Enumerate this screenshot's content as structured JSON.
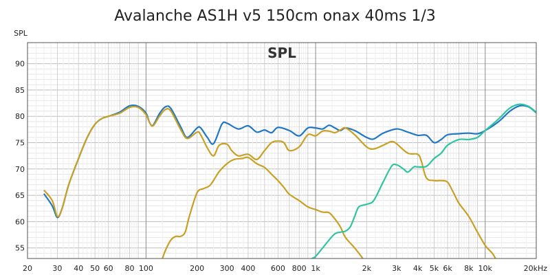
{
  "chart_data": {
    "type": "line",
    "title": "Avalanche AS1H v5 150cm onax 40ms 1/3",
    "inner_label": "SPL",
    "ylabel": "SPL",
    "xscale": "log",
    "xlim": [
      20,
      20000
    ],
    "ylim": [
      53,
      94
    ],
    "grid": true,
    "xticks": [
      {
        "v": 20,
        "label": "20"
      },
      {
        "v": 30,
        "label": "30"
      },
      {
        "v": 40,
        "label": "40"
      },
      {
        "v": 50,
        "label": "50"
      },
      {
        "v": 60,
        "label": "60"
      },
      {
        "v": 80,
        "label": "80"
      },
      {
        "v": 100,
        "label": "100"
      },
      {
        "v": 200,
        "label": "200"
      },
      {
        "v": 300,
        "label": "300"
      },
      {
        "v": 400,
        "label": "400"
      },
      {
        "v": 600,
        "label": "600"
      },
      {
        "v": 800,
        "label": "800"
      },
      {
        "v": 1000,
        "label": "1k"
      },
      {
        "v": 2000,
        "label": "2k"
      },
      {
        "v": 3000,
        "label": "3k"
      },
      {
        "v": 4000,
        "label": "4k"
      },
      {
        "v": 5000,
        "label": "5k"
      },
      {
        "v": 6000,
        "label": "6k"
      },
      {
        "v": 8000,
        "label": "8k"
      },
      {
        "v": 10000,
        "label": "10k"
      },
      {
        "v": 20000,
        "label": "20kHz"
      }
    ],
    "yticks": [
      55,
      60,
      65,
      70,
      75,
      80,
      85,
      90
    ],
    "series": [
      {
        "color": "#1f77c4",
        "points": [
          [
            25,
            65.3
          ],
          [
            28,
            63
          ],
          [
            30,
            60.8
          ],
          [
            32,
            62.5
          ],
          [
            35,
            67
          ],
          [
            40,
            72
          ],
          [
            45,
            76
          ],
          [
            50,
            78.5
          ],
          [
            55,
            79.6
          ],
          [
            60,
            80
          ],
          [
            70,
            80.8
          ],
          [
            80,
            82
          ],
          [
            90,
            81.9
          ],
          [
            100,
            80.6
          ],
          [
            105,
            78.8
          ],
          [
            110,
            78.3
          ],
          [
            120,
            80.5
          ],
          [
            130,
            81.8
          ],
          [
            140,
            81.5
          ],
          [
            160,
            78
          ],
          [
            175,
            76
          ],
          [
            200,
            77.8
          ],
          [
            210,
            77.8
          ],
          [
            230,
            76
          ],
          [
            250,
            74.8
          ],
          [
            280,
            78.5
          ],
          [
            300,
            78.7
          ],
          [
            350,
            77.6
          ],
          [
            400,
            78.2
          ],
          [
            450,
            77
          ],
          [
            500,
            77.4
          ],
          [
            550,
            76.9
          ],
          [
            600,
            77.9
          ],
          [
            700,
            77.3
          ],
          [
            800,
            76.3
          ],
          [
            900,
            77.8
          ],
          [
            1000,
            77.8
          ],
          [
            1100,
            77.6
          ],
          [
            1200,
            78.3
          ],
          [
            1300,
            77.8
          ],
          [
            1400,
            77.3
          ],
          [
            1500,
            77.8
          ],
          [
            1700,
            77.3
          ],
          [
            2000,
            76
          ],
          [
            2200,
            75.7
          ],
          [
            2500,
            76.8
          ],
          [
            3000,
            77.6
          ],
          [
            3500,
            77
          ],
          [
            4000,
            76.4
          ],
          [
            4500,
            76.4
          ],
          [
            5000,
            75
          ],
          [
            5500,
            75.6
          ],
          [
            6000,
            76.5
          ],
          [
            7000,
            76.7
          ],
          [
            8000,
            76.8
          ],
          [
            9000,
            76.7
          ],
          [
            10000,
            77.3
          ],
          [
            12000,
            79
          ],
          [
            14000,
            81
          ],
          [
            16000,
            82
          ],
          [
            18000,
            81.8
          ],
          [
            20000,
            80.7
          ]
        ]
      },
      {
        "color": "#c8a023",
        "points": [
          [
            25,
            66
          ],
          [
            28,
            64
          ],
          [
            30,
            61
          ],
          [
            32,
            62.5
          ],
          [
            35,
            67
          ],
          [
            40,
            72
          ],
          [
            45,
            76
          ],
          [
            50,
            78.5
          ],
          [
            55,
            79.6
          ],
          [
            60,
            80
          ],
          [
            70,
            80.6
          ],
          [
            80,
            81.7
          ],
          [
            90,
            81.7
          ],
          [
            100,
            80.3
          ],
          [
            105,
            78.8
          ],
          [
            110,
            78.2
          ],
          [
            120,
            80
          ],
          [
            130,
            81.3
          ],
          [
            140,
            81
          ],
          [
            160,
            77.5
          ],
          [
            175,
            75.8
          ],
          [
            200,
            77
          ],
          [
            210,
            76.5
          ],
          [
            230,
            74
          ],
          [
            250,
            72.5
          ],
          [
            270,
            74.5
          ],
          [
            300,
            74.7
          ],
          [
            320,
            73.5
          ],
          [
            350,
            72.5
          ],
          [
            400,
            72.8
          ],
          [
            450,
            71.8
          ],
          [
            500,
            73.5
          ],
          [
            550,
            75
          ],
          [
            600,
            75.3
          ],
          [
            650,
            75
          ],
          [
            700,
            73.5
          ],
          [
            800,
            74.2
          ],
          [
            900,
            76.5
          ],
          [
            1000,
            76.3
          ],
          [
            1100,
            77.2
          ],
          [
            1200,
            77.2
          ],
          [
            1300,
            76.9
          ],
          [
            1400,
            77.4
          ],
          [
            1500,
            77.8
          ],
          [
            1700,
            76.5
          ],
          [
            2000,
            74.2
          ],
          [
            2200,
            73.8
          ],
          [
            2500,
            74.5
          ],
          [
            2800,
            75.2
          ],
          [
            3000,
            74.8
          ],
          [
            3500,
            73
          ],
          [
            4000,
            72.8
          ],
          [
            4200,
            71.5
          ],
          [
            4500,
            68.3
          ],
          [
            5000,
            67.8
          ],
          [
            5500,
            67.8
          ],
          [
            6000,
            67.5
          ],
          [
            6500,
            65.5
          ],
          [
            7000,
            63.5
          ],
          [
            8000,
            61
          ],
          [
            9000,
            58
          ],
          [
            10000,
            55.5
          ],
          [
            11000,
            54
          ],
          [
            11500,
            53
          ]
        ]
      },
      {
        "color": "#c8a023",
        "points": [
          [
            125,
            53
          ],
          [
            130,
            54.5
          ],
          [
            140,
            56.5
          ],
          [
            150,
            57.2
          ],
          [
            160,
            57.2
          ],
          [
            170,
            58
          ],
          [
            180,
            61
          ],
          [
            200,
            65.5
          ],
          [
            220,
            66.3
          ],
          [
            240,
            67
          ],
          [
            270,
            69.5
          ],
          [
            300,
            71
          ],
          [
            330,
            71.8
          ],
          [
            370,
            72
          ],
          [
            400,
            72.2
          ],
          [
            450,
            71
          ],
          [
            500,
            70.3
          ],
          [
            550,
            69
          ],
          [
            600,
            67.8
          ],
          [
            650,
            66.5
          ],
          [
            700,
            65.2
          ],
          [
            800,
            64
          ],
          [
            900,
            62.8
          ],
          [
            1000,
            62.3
          ],
          [
            1100,
            61.8
          ],
          [
            1200,
            61.7
          ],
          [
            1300,
            60.5
          ],
          [
            1400,
            59
          ],
          [
            1500,
            57
          ],
          [
            1700,
            55
          ],
          [
            1900,
            53
          ]
        ]
      },
      {
        "color": "#2ec4a0",
        "points": [
          [
            950,
            53
          ],
          [
            1000,
            53.4
          ],
          [
            1100,
            55
          ],
          [
            1200,
            56.5
          ],
          [
            1300,
            57.7
          ],
          [
            1400,
            58
          ],
          [
            1500,
            58.2
          ],
          [
            1600,
            59
          ],
          [
            1700,
            61
          ],
          [
            1800,
            62.8
          ],
          [
            2000,
            63.3
          ],
          [
            2200,
            64
          ],
          [
            2500,
            67.5
          ],
          [
            2800,
            70.5
          ],
          [
            3000,
            70.8
          ],
          [
            3300,
            70
          ],
          [
            3500,
            69.4
          ],
          [
            3800,
            70.4
          ],
          [
            4000,
            70.4
          ],
          [
            4500,
            70.5
          ],
          [
            5000,
            72
          ],
          [
            5500,
            73
          ],
          [
            6000,
            74.5
          ],
          [
            7000,
            75.6
          ],
          [
            8000,
            75.6
          ],
          [
            9000,
            76
          ],
          [
            10000,
            77.3
          ],
          [
            12000,
            79.5
          ],
          [
            14000,
            81.6
          ],
          [
            16000,
            82.3
          ],
          [
            18000,
            81.9
          ],
          [
            20000,
            80.8
          ]
        ]
      }
    ]
  }
}
